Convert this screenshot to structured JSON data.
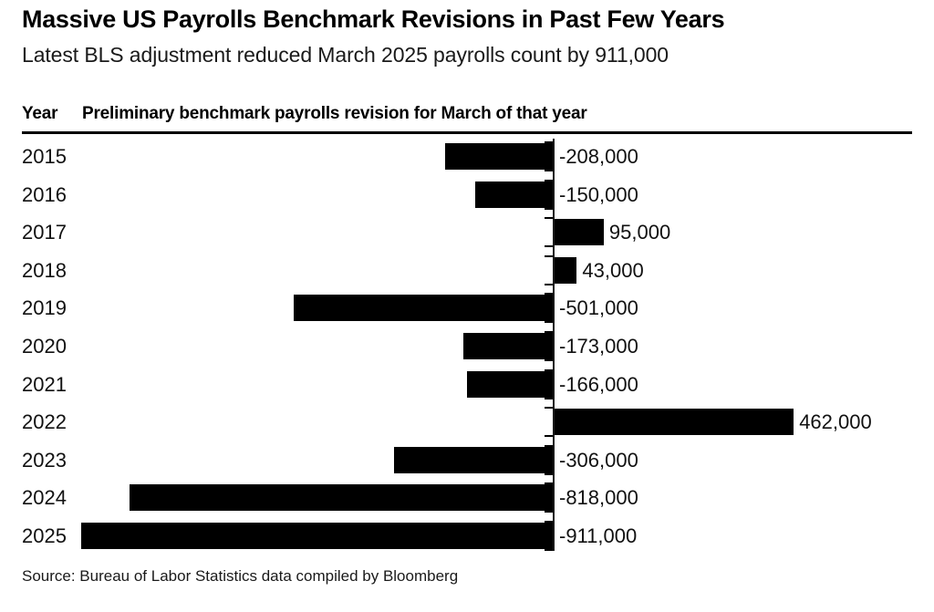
{
  "title": "Massive US Payrolls Benchmark Revisions in Past Few Years",
  "subtitle": "Latest BLS adjustment reduced March 2025 payrolls count by 911,000",
  "table_header": {
    "year_col": "Year",
    "value_col": "Preliminary benchmark payrolls revision for March of that year"
  },
  "source": "Source: Bureau of Labor Statistics data compiled by Bloomberg",
  "colors": {
    "bar": "#000000",
    "text": "#111111",
    "axis": "#1a1a1a",
    "background": "#ffffff"
  },
  "chart_data": {
    "type": "bar",
    "orientation": "horizontal",
    "title": "Massive US Payrolls Benchmark Revisions in Past Few Years",
    "xlabel": "Preliminary benchmark payrolls revision for March of that year",
    "ylabel": "Year",
    "categories": [
      "2015",
      "2016",
      "2017",
      "2018",
      "2019",
      "2020",
      "2021",
      "2022",
      "2023",
      "2024",
      "2025"
    ],
    "values": [
      -208000,
      -150000,
      95000,
      43000,
      -501000,
      -173000,
      -166000,
      462000,
      -306000,
      -818000,
      -911000
    ],
    "value_labels": [
      "-208,000",
      "-150,000",
      "95,000",
      "43,000",
      "-501,000",
      "-173,000",
      "-166,000",
      "462,000",
      "-306,000",
      "-818,000",
      "-911,000"
    ],
    "xlim": [
      -1025000,
      650000
    ],
    "grid": false,
    "legend": "none",
    "zero_axis": true
  }
}
